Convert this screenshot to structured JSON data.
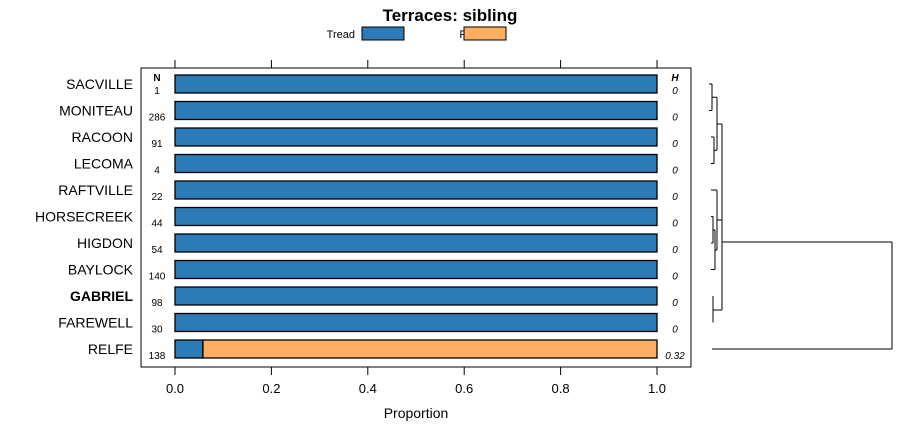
{
  "chart_data": {
    "type": "bar",
    "orientation": "horizontal-stacked",
    "title": "Terraces: sibling",
    "xlabel": "Proportion",
    "xlim": [
      0,
      1
    ],
    "xticks": [
      "0.0",
      "0.2",
      "0.4",
      "0.6",
      "0.8",
      "1.0"
    ],
    "xtick_values": [
      0,
      0.2,
      0.4,
      0.6,
      0.8,
      1.0
    ],
    "legend": {
      "placement": "top",
      "entries": [
        "Tread",
        "Riser"
      ]
    },
    "colors": {
      "Tread": "#2c7bb6",
      "Riser": "#fdae61"
    },
    "n_header": "N",
    "h_header": "H",
    "highlighted": "GABRIEL",
    "categories": [
      "SACVILLE",
      "MONITEAU",
      "RACOON",
      "LECOMA",
      "RAFTVILLE",
      "HORSECREEK",
      "HIGDON",
      "BAYLOCK",
      "GABRIEL",
      "FAREWELL",
      "RELFE"
    ],
    "n": [
      "1",
      "286",
      "91",
      "4",
      "22",
      "44",
      "54",
      "140",
      "98",
      "30",
      "138"
    ],
    "h": [
      "0",
      "0",
      "0",
      "0",
      "0",
      "0",
      "0",
      "0",
      "0",
      "0",
      "0.32"
    ],
    "series": [
      {
        "name": "Tread",
        "values": [
          1,
          1,
          1,
          1,
          1,
          1,
          1,
          1,
          1,
          1,
          0.058
        ]
      },
      {
        "name": "Riser",
        "values": [
          0,
          0,
          0,
          0,
          0,
          0,
          0,
          0,
          0,
          0,
          0.942
        ]
      }
    ]
  }
}
